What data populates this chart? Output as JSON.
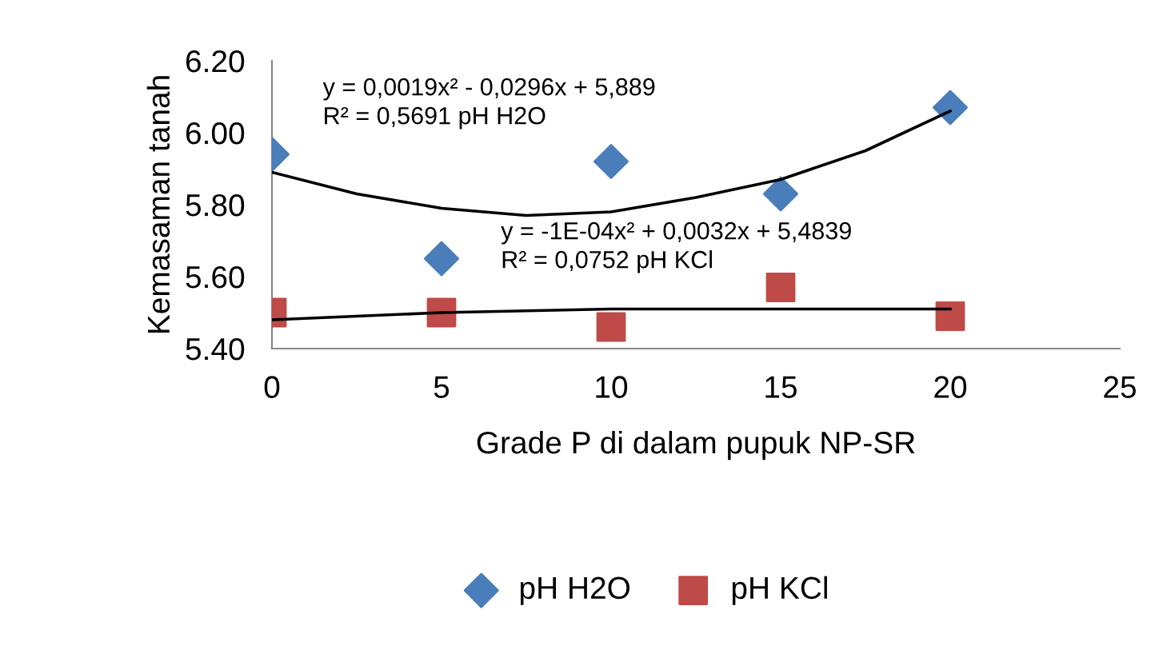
{
  "chart_data": {
    "type": "scatter",
    "xlabel": "Grade P di dalam pupuk NP-SR",
    "ylabel": "Kemasaman tanah",
    "series": [
      {
        "name": "pH H2O",
        "color": "#4a7ebb",
        "marker": "diamond",
        "x": [
          0,
          5,
          10,
          15,
          20
        ],
        "values": [
          5.94,
          5.65,
          5.92,
          5.83,
          6.07
        ]
      },
      {
        "name": "pH KCl",
        "color": "#be4b48",
        "marker": "square",
        "x": [
          0,
          5,
          10,
          15,
          20
        ],
        "values": [
          5.5,
          5.5,
          5.46,
          5.57,
          5.49
        ]
      },
      {
        "type": "line",
        "color": "#000000",
        "x": [
          0,
          2.5,
          5,
          7.5,
          10,
          12.5,
          15,
          17.5,
          20
        ],
        "values": [
          5.89,
          5.83,
          5.79,
          5.77,
          5.78,
          5.82,
          5.87,
          5.95,
          6.06
        ]
      },
      {
        "type": "line",
        "color": "#000000",
        "x": [
          0,
          5,
          10,
          15,
          20
        ],
        "values": [
          5.48,
          5.5,
          5.51,
          5.51,
          5.51
        ]
      }
    ],
    "annotations": [
      "y = 0,0019x² - 0,0296x + 5,889",
      "R² = 0,5691 pH H2O",
      "y = -1E-04x² + 0,0032x + 5,4839",
      "R² = 0,0752 pH KCl"
    ],
    "xlim": [
      0,
      25
    ],
    "xticks": [
      0,
      5,
      10,
      15,
      20,
      25
    ],
    "ylim": [
      5.4,
      6.2
    ],
    "yticks": [
      {
        "value": 5.4,
        "label": "5.40"
      },
      {
        "value": 5.6,
        "label": "5.60"
      },
      {
        "value": 5.8,
        "label": "5.80"
      },
      {
        "value": 6.0,
        "label": "6.00"
      },
      {
        "value": 6.2,
        "label": "6.20"
      }
    ],
    "grid": false,
    "legend": "bottom"
  }
}
